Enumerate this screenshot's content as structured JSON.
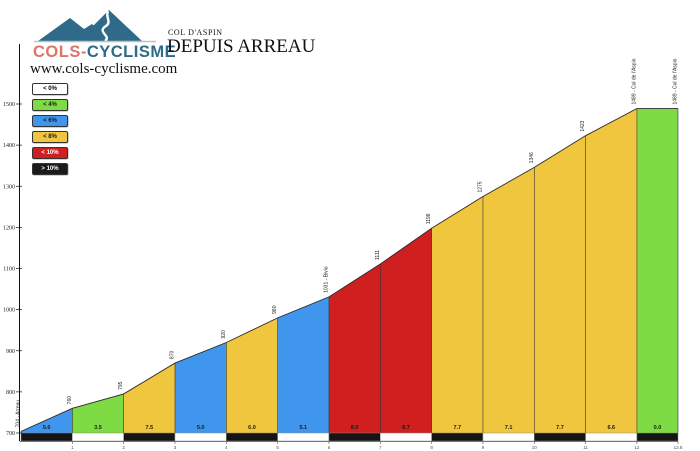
{
  "header": {
    "logo_text_primary": "COLS-",
    "logo_text_secondary": "CYCLISME",
    "climb_name": "COL D'ASPIN",
    "title": "DEPUIS ARREAU",
    "website": "www.cols-cyclisme.com"
  },
  "colors": {
    "logo_teal": "#2f6b88",
    "logo_salmon": "#df7468",
    "gradient_lt0": "#ffffff",
    "gradient_lt4": "#7edb44",
    "gradient_lt6": "#4095ec",
    "gradient_lt8": "#f0c63f",
    "gradient_lt10": "#cf1f1f",
    "gradient_gt10": "#1b1b1b",
    "outline": "#333333",
    "km_bar_dark": "#151515",
    "km_bar_light": "#ffffff"
  },
  "legend": {
    "items": [
      {
        "label": "< 0%",
        "color": "#ffffff",
        "text_color": "#000000"
      },
      {
        "label": "< 4%",
        "color": "#7edb44",
        "text_color": "#1a1a1a"
      },
      {
        "label": "< 6%",
        "color": "#4095ec",
        "text_color": "#1a1a1a"
      },
      {
        "label": "< 8%",
        "color": "#f0c63f",
        "text_color": "#1a1a1a"
      },
      {
        "label": "< 10%",
        "color": "#cf1f1f",
        "text_color": "#ffffff"
      },
      {
        "label": "> 10%",
        "color": "#1b1b1b",
        "text_color": "#ffffff"
      }
    ]
  },
  "chart_data": {
    "type": "area",
    "title": "COL D'ASPIN DEPUIS ARREAU",
    "xlabel": "",
    "ylabel": "",
    "x_km": [
      0,
      1,
      2,
      3,
      4,
      5,
      6,
      7,
      8,
      9,
      10,
      11,
      12,
      12.8
    ],
    "elevations": [
      704,
      760,
      795,
      870,
      920,
      980,
      1031,
      1111,
      1198,
      1275,
      1346,
      1423,
      1489,
      1489
    ],
    "point_labels": [
      "704 - Arreau",
      "760",
      "795",
      "870",
      "920",
      "980",
      "1031 - Bivio",
      "1111",
      "1198",
      "1275",
      "1346",
      "1423",
      "1489 - Col de l'Aspin",
      "1489 - Col de l'Aspin"
    ],
    "segment_gradients_pct": [
      5.6,
      3.5,
      7.5,
      5.0,
      6.0,
      5.1,
      8.0,
      8.7,
      7.7,
      7.1,
      7.7,
      6.6,
      0.0
    ],
    "y_ticks": [
      700,
      800,
      900,
      1000,
      1100,
      1200,
      1300,
      1400,
      1500
    ],
    "x_ticks": [
      1,
      2,
      3,
      4,
      5,
      6,
      7,
      8,
      9,
      10,
      11,
      12,
      12.8
    ],
    "ylim": [
      700,
      1500
    ],
    "xlim": [
      0,
      12.8
    ],
    "grid": false,
    "legend_position": "top-left"
  }
}
